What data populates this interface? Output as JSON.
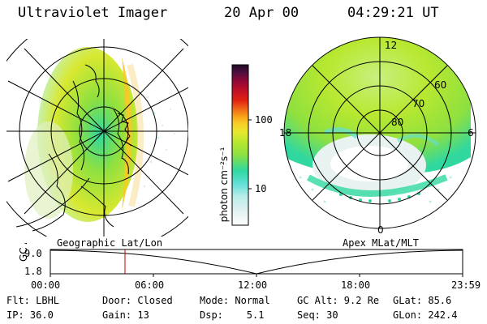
{
  "header": {
    "instrument": "Ultraviolet Imager",
    "date": "20 Apr 00",
    "time": "04:29:21 UT"
  },
  "colorbar": {
    "unit_label": "photon cm⁻²s⁻¹",
    "ticks": [
      "100",
      "10"
    ],
    "colors": [
      "#ffffff",
      "#e6f2f2",
      "#b8ece8",
      "#60e0d8",
      "#30d8a0",
      "#8ee040",
      "#b8e830",
      "#e8e830",
      "#f8d028",
      "#f8a018",
      "#f06018",
      "#e02010",
      "#c01028",
      "#900838",
      "#501040",
      "#200828"
    ]
  },
  "left_map": {
    "label": "Geographic Lat/Lon"
  },
  "right_map": {
    "label": "Apex MLat/MLT",
    "mlt_labels": {
      "top": "12",
      "left": "18",
      "right": "6",
      "bottom": "0"
    },
    "lat_labels": [
      "60",
      "70",
      "80"
    ]
  },
  "timeline": {
    "ylabel": "GC Alt",
    "y_ticks": [
      "9.0",
      "1.8"
    ],
    "x_ticks": [
      "00:00",
      "06:00",
      "12:00",
      "18:00",
      "23:59"
    ],
    "marker_time": "04:29"
  },
  "info": {
    "rows": [
      [
        "Flt: LBHL",
        "Door: Closed",
        "Mode: Normal",
        "GC Alt: 9.2 Re",
        "GLat: 85.6"
      ],
      [
        "IP: 36.0",
        "Gain: 13",
        "Dsp:    5.1",
        "Seq: 30",
        "GLon: 242.4"
      ]
    ]
  }
}
